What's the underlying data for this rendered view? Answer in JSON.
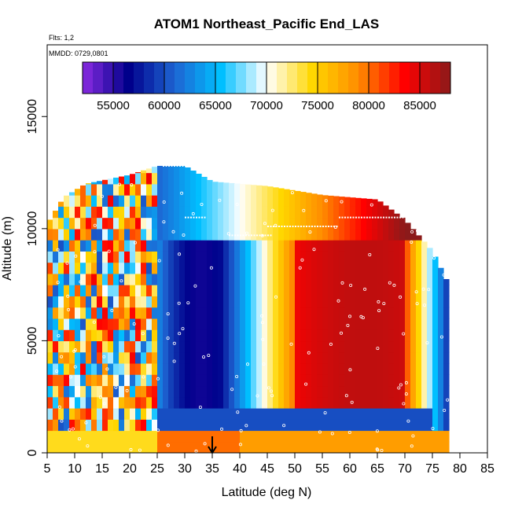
{
  "chart_data": {
    "type": "heatmap",
    "title": "ATOM1 Northeast_Pacific End_LAS",
    "flights_label": "Flts: 1,2",
    "dates_label": "MMDD: 0729,0801",
    "xlabel": "Latitude (deg N)",
    "ylabel": "Altitude (m)",
    "xlim": [
      5,
      85
    ],
    "ylim": [
      0,
      18200
    ],
    "x_ticks": [
      "5",
      "10",
      "15",
      "20",
      "25",
      "30",
      "35",
      "40",
      "45",
      "50",
      "55",
      "60",
      "65",
      "70",
      "75",
      "80",
      "85"
    ],
    "y_ticks": [
      "0",
      "5000",
      "10000",
      "15000"
    ],
    "colorbar": {
      "range": [
        52000,
        88000
      ],
      "ticks": [
        "55000",
        "60000",
        "65000",
        "70000",
        "75000",
        "80000",
        "85000"
      ],
      "colors": [
        "#8a2be2",
        "#00008b",
        "#1e64d2",
        "#00bfff",
        "#ffffff",
        "#ffd700",
        "#ff8c00",
        "#ff0000",
        "#8b1a1a"
      ]
    },
    "grid": false,
    "field_description": "Pressure-like field, low values (blue/purple) over 25-40N, high values (red) near 60-70N",
    "arrow_latitude": 35,
    "profiles": [
      {
        "lat": 5.5,
        "top": 10400,
        "bottom": 0
      },
      {
        "lat": 8,
        "top": 11400,
        "bottom": 0
      },
      {
        "lat": 12,
        "top": 12000,
        "bottom": 0
      },
      {
        "lat": 20,
        "top": 12400,
        "bottom": 0
      },
      {
        "lat": 25,
        "top": 12800,
        "bottom": 0
      },
      {
        "lat": 30,
        "top": 12800,
        "bottom": 0
      },
      {
        "lat": 35,
        "top": 12100,
        "bottom": 0
      },
      {
        "lat": 45,
        "top": 11900,
        "bottom": 0
      },
      {
        "lat": 55,
        "top": 11500,
        "bottom": 0
      },
      {
        "lat": 65,
        "top": 11300,
        "bottom": 0
      },
      {
        "lat": 70,
        "top": 10400,
        "bottom": 0
      },
      {
        "lat": 75,
        "top": 9000,
        "bottom": 0
      },
      {
        "lat": 78,
        "top": 7500,
        "bottom": 0
      }
    ],
    "flight_track_segments": [
      {
        "lat_start": 26,
        "lat_end": 32,
        "alt": 12800
      },
      {
        "lat_start": 30,
        "lat_end": 34,
        "alt": 10500
      },
      {
        "lat_start": 38,
        "lat_end": 46,
        "alt": 9700
      },
      {
        "lat_start": 45,
        "lat_end": 58,
        "alt": 10100
      },
      {
        "lat_start": 58,
        "lat_end": 70,
        "alt": 10500
      },
      {
        "lat_start": 72,
        "lat_end": 77,
        "alt": 9900
      }
    ]
  }
}
